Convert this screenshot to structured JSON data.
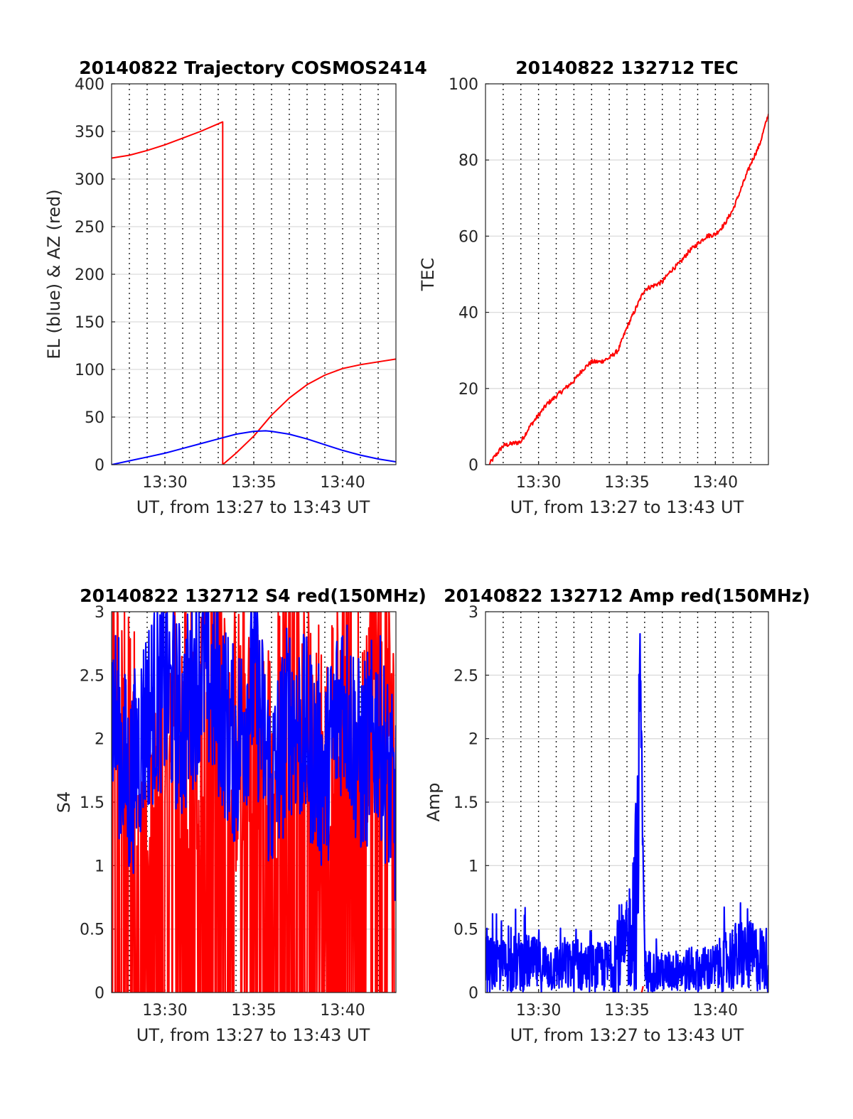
{
  "colors": {
    "red": "#ff0000",
    "blue": "#0000ff",
    "axis": "#262626",
    "grid": "#dcdcdc"
  },
  "chart_data": [
    {
      "id": "trajectory",
      "type": "line",
      "title": "20140822 Trajectory COSMOS2414",
      "xlabel": "UT, from 13:27 to 13:43 UT",
      "ylabel": "EL (blue) & AZ (red)",
      "xlim": [
        "13:27",
        "13:43"
      ],
      "xticks": [
        "13:30",
        "13:35",
        "13:40"
      ],
      "ylim": [
        0,
        400
      ],
      "yticks": [
        "0",
        "50",
        "100",
        "150",
        "200",
        "250",
        "300",
        "350",
        "400"
      ],
      "grid": "horizontal solid, vertical dotted every minute",
      "series": [
        {
          "color": "#ff0000",
          "x": [
            "13:27",
            "13:28",
            "13:29",
            "13:30",
            "13:31",
            "13:32",
            "13:33:15",
            "13:33:15",
            "13:34",
            "13:35",
            "13:36",
            "13:37",
            "13:38",
            "13:39",
            "13:40",
            "13:41",
            "13:42",
            "13:43"
          ],
          "y": [
            322,
            325,
            330,
            336,
            343,
            350,
            360,
            0,
            12,
            30,
            52,
            70,
            84,
            94,
            101,
            105,
            108,
            111
          ]
        },
        {
          "color": "#0000ff",
          "x": [
            "13:27",
            "13:28",
            "13:29",
            "13:30",
            "13:31",
            "13:32",
            "13:33",
            "13:34",
            "13:35",
            "13:35:40",
            "13:36",
            "13:37",
            "13:38",
            "13:39",
            "13:40",
            "13:41",
            "13:42",
            "13:43"
          ],
          "y": [
            0,
            4,
            8,
            12,
            17,
            22,
            27,
            32,
            35,
            35.5,
            35,
            32,
            27,
            21,
            15,
            10,
            6,
            3
          ]
        }
      ]
    },
    {
      "id": "tec",
      "type": "line",
      "title": "20140822 132712 TEC",
      "xlabel": "UT, from 13:27 to 13:43 UT",
      "ylabel": "TEC",
      "xlim": [
        "13:27",
        "13:43"
      ],
      "xticks": [
        "13:30",
        "13:35",
        "13:40"
      ],
      "ylim": [
        0,
        100
      ],
      "yticks": [
        "0",
        "20",
        "40",
        "60",
        "80",
        "100"
      ],
      "series": [
        {
          "color": "#ff0000",
          "x": [
            "13:27:12",
            "13:27:30",
            "13:28",
            "13:28:30",
            "13:29",
            "13:29:30",
            "13:30",
            "13:30:30",
            "13:31",
            "13:31:30",
            "13:32",
            "13:32:30",
            "13:33",
            "13:33:30",
            "13:34",
            "13:34:30",
            "13:35",
            "13:35:30",
            "13:36",
            "13:36:30",
            "13:37",
            "13:37:30",
            "13:38",
            "13:38:30",
            "13:39",
            "13:39:30",
            "13:40",
            "13:40:30",
            "13:41",
            "13:41:30",
            "13:42",
            "13:42:30",
            "13:43"
          ],
          "y": [
            0,
            2,
            5,
            5.5,
            6,
            10,
            13,
            16,
            18,
            20,
            22,
            25,
            27,
            27,
            28,
            30,
            36,
            41,
            46,
            47,
            48,
            51,
            53,
            56,
            58,
            60,
            60.5,
            63,
            67,
            73,
            79,
            84,
            92
          ]
        }
      ]
    },
    {
      "id": "s4",
      "type": "line",
      "title": "20140822 132712 S4 red(150MHz)",
      "xlabel": "UT, from 13:27 to 13:43 UT",
      "ylabel": "S4",
      "xlim": [
        "13:27",
        "13:43"
      ],
      "xticks": [
        "13:30",
        "13:35",
        "13:40"
      ],
      "ylim": [
        0,
        3
      ],
      "yticks": [
        "0",
        "0.5",
        "1",
        "1.5",
        "2",
        "2.5",
        "3"
      ],
      "series": [
        {
          "color": "#ff0000",
          "x": [
            "13:27",
            "13:28",
            "13:29",
            "13:30",
            "13:31",
            "13:32",
            "13:33",
            "13:34",
            "13:35",
            "13:36",
            "13:37",
            "13:38",
            "13:39",
            "13:40",
            "13:41",
            "13:42",
            "13:43"
          ],
          "y": [
            2.8,
            1.8,
            0,
            1.9,
            1.8,
            1.7,
            2.5,
            1.5,
            2.0,
            1.2,
            2.4,
            2.2,
            1.0,
            2.8,
            1.6,
            2.6,
            1.4
          ]
        },
        {
          "color": "#0000ff",
          "x": [
            "13:27",
            "13:28",
            "13:29",
            "13:30",
            "13:31",
            "13:32",
            "13:33",
            "13:34",
            "13:35",
            "13:36",
            "13:37",
            "13:38",
            "13:39",
            "13:40",
            "13:41",
            "13:42",
            "13:43"
          ],
          "y": [
            2.3,
            1.6,
            2.2,
            2.4,
            2.1,
            2.6,
            2.3,
            1.9,
            2.5,
            1.6,
            2.2,
            2.0,
            1.7,
            2.4,
            1.8,
            2.1,
            1.4
          ]
        }
      ]
    },
    {
      "id": "amp",
      "type": "line",
      "title": "20140822 132712 Amp red(150MHz)",
      "xlabel": "UT, from 13:27 to 13:43 UT",
      "ylabel": "Amp",
      "xlim": [
        "13:27",
        "13:43"
      ],
      "xticks": [
        "13:30",
        "13:35",
        "13:40"
      ],
      "ylim": [
        0,
        3
      ],
      "yticks": [
        "0",
        "0.5",
        "1",
        "1.5",
        "2",
        "2.5",
        "3"
      ],
      "series": [
        {
          "color": "#0000ff",
          "x": [
            "13:27",
            "13:28",
            "13:29",
            "13:30",
            "13:31",
            "13:32",
            "13:33",
            "13:34",
            "13:35",
            "13:35:45",
            "13:36",
            "13:37",
            "13:38",
            "13:39",
            "13:40",
            "13:41",
            "13:42",
            "13:43"
          ],
          "y": [
            0.65,
            0.6,
            0.7,
            0.6,
            0.55,
            0.6,
            0.55,
            0.6,
            0.95,
            2.9,
            0.5,
            0.45,
            0.5,
            0.5,
            0.55,
            0.8,
            0.8,
            0.75
          ]
        },
        {
          "color": "#ff0000",
          "x": [
            "13:35:50"
          ],
          "y": [
            0.05
          ]
        }
      ]
    }
  ]
}
